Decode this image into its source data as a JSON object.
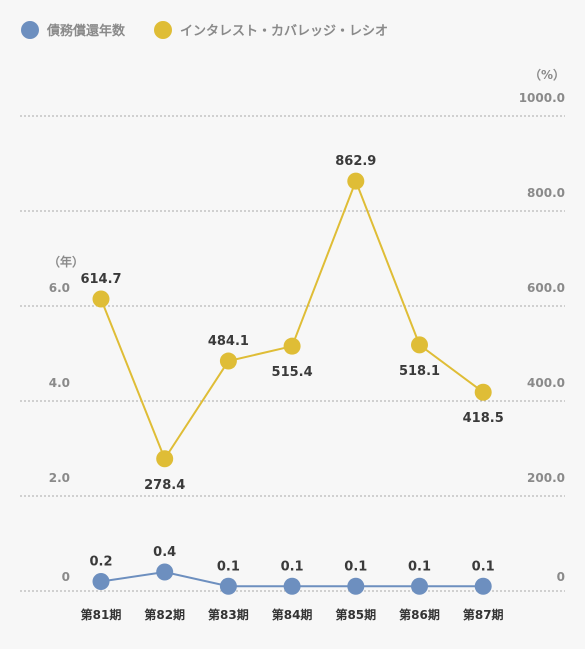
{
  "chart_data": {
    "type": "line",
    "categories": [
      "第81期",
      "第82期",
      "第83期",
      "第84期",
      "第85期",
      "第86期",
      "第87期"
    ],
    "series": [
      {
        "name": "債務償還年数",
        "axis": "left",
        "color": "#6d8fbf",
        "values": [
          0.2,
          0.4,
          0.1,
          0.1,
          0.1,
          0.1,
          0.1
        ],
        "labels": [
          "0.2",
          "0.4",
          "0.1",
          "0.1",
          "0.1",
          "0.1",
          "0.1"
        ],
        "label_positions": [
          "above",
          "above",
          "above",
          "above",
          "above",
          "above",
          "above"
        ]
      },
      {
        "name": "インタレスト・カバレッジ・レシオ",
        "axis": "right",
        "color": "#dfbd36",
        "values": [
          614.7,
          278.4,
          484.1,
          515.4,
          862.9,
          518.1,
          418.5
        ],
        "labels": [
          "614.7",
          "278.4",
          "484.1",
          "515.4",
          "862.9",
          "518.1",
          "418.5"
        ],
        "label_positions": [
          "above",
          "below",
          "above",
          "below",
          "above",
          "below",
          "below"
        ]
      }
    ],
    "left_axis": {
      "unit": "（年）",
      "ticks": [
        0,
        2,
        4,
        6
      ],
      "tick_labels": [
        "0",
        "2.0",
        "4.0",
        "6.0"
      ]
    },
    "right_axis": {
      "unit": "（%）",
      "ticks": [
        0,
        200,
        400,
        600,
        800,
        1000
      ],
      "tick_labels": [
        "0",
        "200.0",
        "400.0",
        "600.0",
        "800.0",
        "1000.0"
      ],
      "ylim": [
        0,
        1000
      ]
    },
    "grid": true,
    "legend_position": "top-left"
  }
}
